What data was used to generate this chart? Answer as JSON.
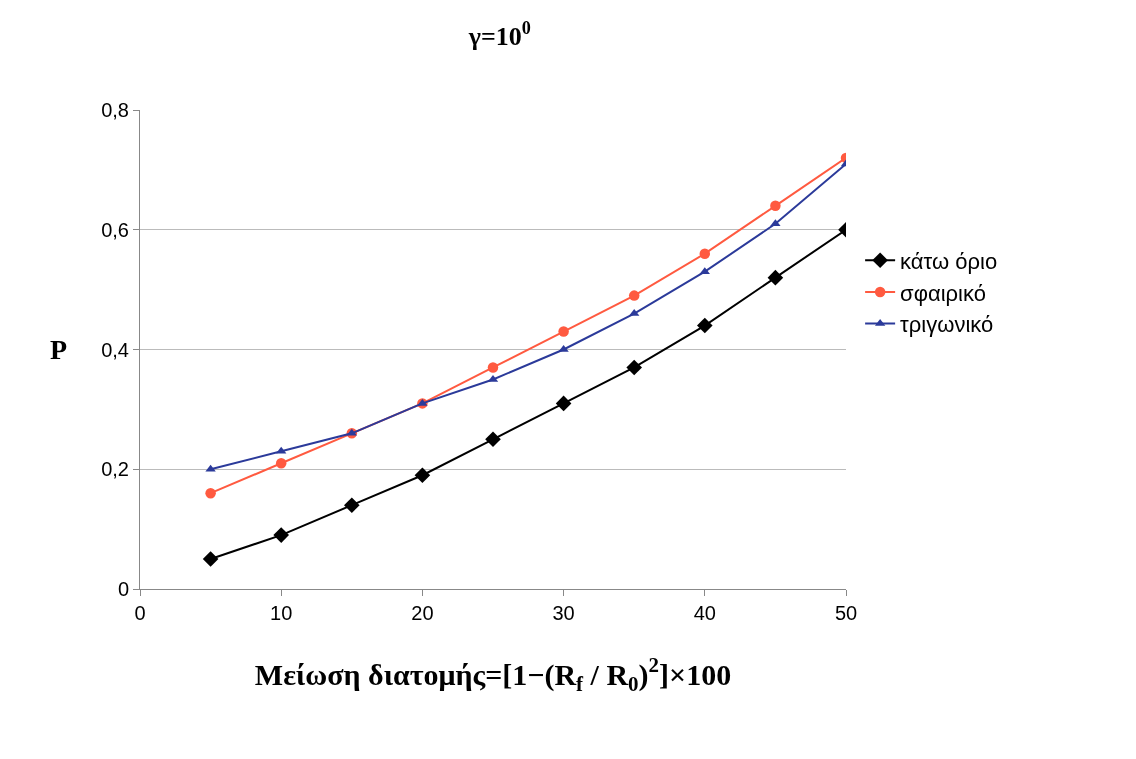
{
  "chart_data": {
    "type": "line",
    "title": "γ=10$^{0}$",
    "xlabel": "Μείωση διατομής=[1−(R$_{f}$ / R$_{0}$)$^{2}$]×100",
    "ylabel": "P",
    "x": [
      5,
      10,
      15,
      20,
      25,
      30,
      35,
      40,
      45,
      50
    ],
    "series": [
      {
        "name": "κάτω όριο",
        "color": "#000000",
        "marker": "diamond",
        "values": [
          0.05,
          0.09,
          0.14,
          0.19,
          0.25,
          0.31,
          0.37,
          0.44,
          0.52,
          0.6
        ]
      },
      {
        "name": "σφαιρικό",
        "color": "#ff5a40",
        "marker": "circle",
        "values": [
          0.16,
          0.21,
          0.26,
          0.31,
          0.37,
          0.43,
          0.49,
          0.56,
          0.64,
          0.72
        ]
      },
      {
        "name": "τριγωνικό",
        "color": "#2b3a9a",
        "marker": "triangle",
        "values": [
          0.2,
          0.23,
          0.26,
          0.31,
          0.35,
          0.4,
          0.46,
          0.53,
          0.61,
          0.71
        ]
      }
    ],
    "xlim": [
      0,
      50
    ],
    "xticks": [
      0,
      10,
      20,
      30,
      40,
      50
    ],
    "ylim": [
      0,
      0.8
    ],
    "yticks": [
      0,
      {
        "value": 0.2,
        "label": "0,2"
      },
      {
        "value": 0.4,
        "label": "0,4"
      },
      {
        "value": 0.6,
        "label": "0,6"
      },
      {
        "value": 0.8,
        "label": "0,8"
      }
    ],
    "grid": "y",
    "legend": "right",
    "line_style": "solid"
  }
}
